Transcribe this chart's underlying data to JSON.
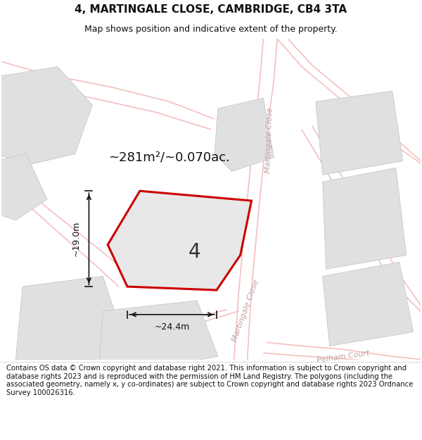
{
  "title": "4, MARTINGALE CLOSE, CAMBRIDGE, CB4 3TA",
  "subtitle": "Map shows position and indicative extent of the property.",
  "footer": "Contains OS data © Crown copyright and database right 2021. This information is subject to Crown copyright and database rights 2023 and is reproduced with the permission of HM Land Registry. The polygons (including the associated geometry, namely x, y co-ordinates) are subject to Crown copyright and database rights 2023 Ordnance Survey 100026316.",
  "area_label": "~281m²/~0.070ac.",
  "parcel_label": "4",
  "dim_width": "~24.4m",
  "dim_height": "~19.0m",
  "map_bg": "#ffffff",
  "footer_bg": "#f0f0f0",
  "road_color": "#f5c0c0",
  "road_lw": 1.2,
  "parcel_fill": "#e0e0e0",
  "parcel_edge": "#bbbbbb",
  "main_fill": "#e8e8e8",
  "main_edge": "#cc0000",
  "main_edge_lw": 2.2,
  "title_fontsize": 11,
  "subtitle_fontsize": 9,
  "area_fontsize": 13,
  "label_fontsize": 20,
  "dim_fontsize": 9,
  "footer_fontsize": 7.2,
  "road_label_fontsize": 8,
  "road_label_color": "#c0a0a0"
}
